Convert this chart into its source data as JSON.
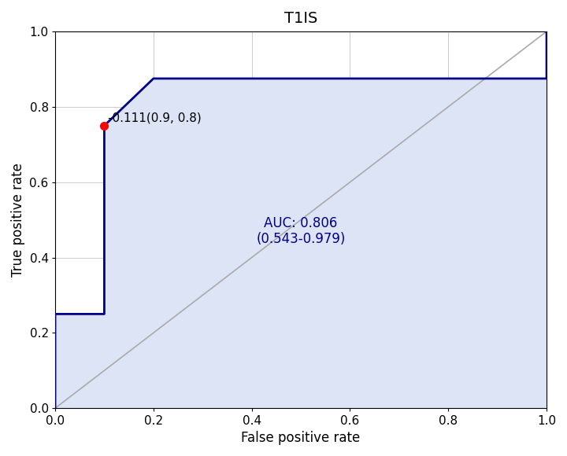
{
  "title": "T1IS",
  "xlabel": "False positive rate",
  "ylabel": "True positive rate",
  "auc_text": "AUC: 0.806\n(0.543-0.979)",
  "optimal_point_label": "-0.111(0.9, 0.8)",
  "optimal_point": [
    0.1,
    0.75
  ],
  "fpr": [
    0.0,
    0.0,
    0.1,
    0.1,
    0.1,
    0.2,
    0.6,
    1.0,
    1.0
  ],
  "tpr": [
    0.0,
    0.25,
    0.25,
    0.625,
    0.75,
    0.875,
    0.875,
    0.875,
    1.0
  ],
  "roc_color": "#00008B",
  "fill_color": "#dce4f5",
  "diagonal_color": "#aaaaaa",
  "optimal_point_color": "#ff0000",
  "auc_text_color": "#00008B",
  "grid_color": "#cccccc",
  "bg_color": "#ffffff",
  "xlim": [
    0.0,
    1.0
  ],
  "ylim": [
    0.0,
    1.0
  ],
  "xticks": [
    0.0,
    0.2,
    0.4,
    0.6,
    0.8,
    1.0
  ],
  "yticks": [
    0.0,
    0.2,
    0.4,
    0.6,
    0.8,
    1.0
  ],
  "title_fontsize": 14,
  "axis_label_fontsize": 12,
  "tick_fontsize": 11,
  "auc_fontsize": 12,
  "optimal_label_fontsize": 11
}
